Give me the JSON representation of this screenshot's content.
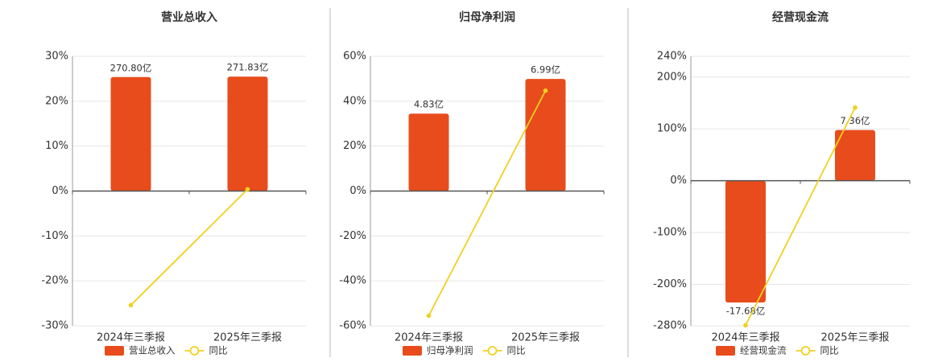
{
  "chart_data": [
    {
      "type": "bar",
      "title": "营业总收入",
      "categories": [
        "2024年三季报",
        "2025年三季报"
      ],
      "series": [
        {
          "name": "营业总收入",
          "color": "#e84c1c",
          "axis": "y2",
          "values": [
            270.8,
            271.83
          ],
          "value_labels": [
            "270.80亿",
            "271.83亿"
          ]
        },
        {
          "name": "同比",
          "color": "#f0d020",
          "type": "line",
          "values": [
            -25.4,
            0.4
          ]
        }
      ],
      "ylim": [
        -30,
        30
      ],
      "yticks": [
        {
          "value": -30,
          "label": "-30%"
        },
        {
          "value": -20,
          "label": "-20%"
        },
        {
          "value": -10,
          "label": "-10%"
        },
        {
          "value": 0,
          "label": "0%"
        },
        {
          "value": 10,
          "label": "10%"
        },
        {
          "value": 20,
          "label": "20%"
        },
        {
          "value": 30,
          "label": "30%"
        }
      ],
      "y2lim": [
        -320,
        320
      ],
      "grid": true
    },
    {
      "type": "bar",
      "title": "归母净利润",
      "categories": [
        "2024年三季报",
        "2025年三季报"
      ],
      "series": [
        {
          "name": "归母净利润",
          "color": "#e84c1c",
          "axis": "y2",
          "values": [
            4.83,
            6.99
          ],
          "value_labels": [
            "4.83亿",
            "6.99亿"
          ]
        },
        {
          "name": "同比",
          "color": "#f0d020",
          "type": "line",
          "values": [
            -55.5,
            44.7
          ]
        }
      ],
      "ylim": [
        -60,
        60
      ],
      "yticks": [
        {
          "value": -60,
          "label": "-60%"
        },
        {
          "value": -40,
          "label": "-40%"
        },
        {
          "value": -20,
          "label": "-20%"
        },
        {
          "value": 0,
          "label": "0%"
        },
        {
          "value": 20,
          "label": "20%"
        },
        {
          "value": 40,
          "label": "40%"
        },
        {
          "value": 60,
          "label": "60%"
        }
      ],
      "y2lim": [
        -8.4,
        8.4
      ],
      "grid": true
    },
    {
      "type": "bar",
      "title": "经营现金流",
      "categories": [
        "2024年三季报",
        "2025年三季报"
      ],
      "series": [
        {
          "name": "经营现金流",
          "color": "#e84c1c",
          "axis": "y2",
          "values": [
            -17.68,
            7.36
          ],
          "value_labels": [
            "-17.68亿",
            "7.36亿"
          ]
        },
        {
          "name": "同比",
          "color": "#f0d020",
          "type": "line",
          "values": [
            -279,
            141
          ]
        }
      ],
      "ylim": [
        -280,
        240
      ],
      "yticks": [
        {
          "value": -280,
          "label": "-280%"
        },
        {
          "value": -200,
          "label": "-200%"
        },
        {
          "value": -100,
          "label": "-100%"
        },
        {
          "value": 0,
          "label": "0%"
        },
        {
          "value": 100,
          "label": "100%"
        },
        {
          "value": 200,
          "label": "200%"
        },
        {
          "value": 240,
          "label": "240%"
        }
      ],
      "y2lim": [
        -21.06,
        18.05
      ],
      "grid": true
    }
  ]
}
